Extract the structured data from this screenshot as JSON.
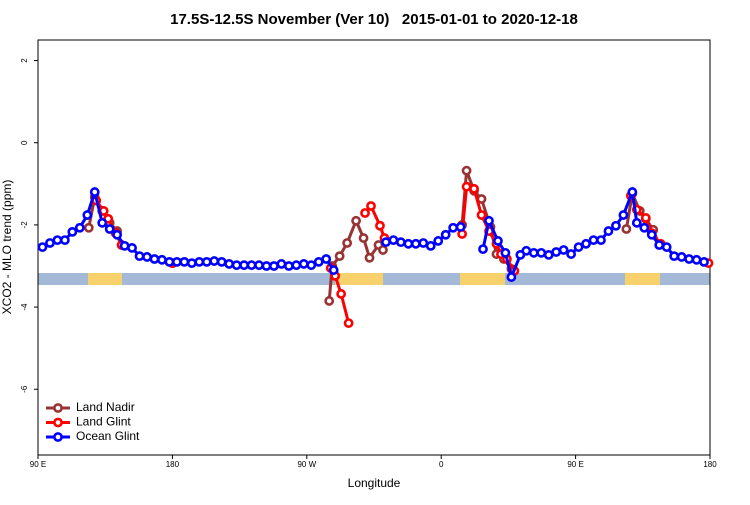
{
  "chart_data": {
    "type": "line",
    "title": "17.5S-12.5S November (Ver 10)   2015-01-01 to 2020-12-18",
    "x_label": "Longitude",
    "y_label": "XCO2 - MLO trend (ppm)",
    "xlim": [
      90,
      540
    ],
    "ylim": [
      -7.6,
      2.5
    ],
    "xticks": [
      {
        "value": 90,
        "label": "90 E"
      },
      180,
      {
        "value": 270,
        "label": "90 W"
      },
      {
        "value": 360,
        "label": "0"
      },
      {
        "value": 450,
        "label": "90 E"
      },
      {
        "value": 540,
        "label": "180"
      }
    ],
    "yticks": [
      2,
      0,
      -2,
      -4,
      -6
    ],
    "legend": "bottom-left",
    "series": [
      {
        "name": "Land Nadir",
        "color": "#993333",
        "x": [
          124,
          128,
          133,
          138,
          143,
          146,
          160,
          180,
          200,
          285,
          287,
          292,
          297,
          303,
          308,
          312,
          318,
          321,
          350,
          374,
          377,
          382,
          387,
          393,
          397,
          402,
          407,
          450,
          484,
          488,
          493,
          497,
          502,
          506
        ],
        "values": [
          -2.07,
          -1.32,
          -1.66,
          -1.95,
          -2.15,
          -2.49,
          null,
          -2.93,
          null,
          -3.85,
          -3.0,
          -2.76,
          -2.44,
          -1.9,
          -2.32,
          -2.8,
          -2.49,
          -2.61,
          null,
          -2.0,
          -0.68,
          -1.17,
          -1.37,
          -2.05,
          -2.71,
          -2.83,
          -3.07,
          null,
          -2.1,
          -1.24,
          -1.66,
          -1.85,
          -2.12,
          -2.49
        ]
      },
      {
        "name": "Land Glint",
        "color": "#ff0000",
        "x": [
          129,
          134,
          137,
          142,
          146,
          160,
          180,
          200,
          286,
          289,
          293,
          298,
          303,
          309,
          313,
          319,
          322,
          350,
          374,
          377,
          382,
          387,
          392,
          397,
          400,
          404,
          409,
          450,
          487,
          491,
          497,
          501,
          507,
          520,
          539
        ],
        "values": [
          -1.41,
          -1.66,
          -1.85,
          -2.2,
          -2.49,
          null,
          -2.93,
          null,
          -3.05,
          -3.24,
          -3.68,
          -4.39,
          null,
          -1.71,
          -1.54,
          -2.02,
          -2.32,
          null,
          -2.22,
          -1.07,
          -1.12,
          -1.76,
          -2.15,
          -2.46,
          -2.71,
          -2.83,
          -3.12,
          null,
          -1.29,
          -1.63,
          -1.83,
          -2.2,
          -2.46,
          null,
          -2.93
        ]
      },
      {
        "name": "Ocean Glint",
        "color": "#0000ff",
        "x": [
          93,
          98,
          103,
          108,
          113,
          118,
          123,
          128,
          133,
          138,
          143,
          148,
          153,
          158,
          163,
          168,
          173,
          178,
          183,
          188,
          193,
          198,
          203,
          208,
          213,
          218,
          223,
          228,
          233,
          238,
          243,
          248,
          253,
          258,
          263,
          268,
          273,
          278,
          283,
          288,
          305,
          323,
          328,
          333,
          338,
          343,
          348,
          353,
          358,
          363,
          368,
          373,
          380,
          388,
          392,
          398,
          403,
          407,
          413,
          417,
          422,
          427,
          432,
          437,
          442,
          447,
          452,
          457,
          462,
          467,
          472,
          477,
          482,
          488,
          491,
          496,
          501,
          506,
          511,
          516,
          521,
          526,
          531,
          536
        ],
        "values": [
          -2.54,
          -2.44,
          -2.37,
          -2.37,
          -2.17,
          -2.07,
          -1.76,
          -1.2,
          -1.95,
          -2.1,
          -2.24,
          -2.51,
          -2.56,
          -2.76,
          -2.78,
          -2.83,
          -2.85,
          -2.9,
          -2.9,
          -2.9,
          -2.93,
          -2.9,
          -2.9,
          -2.88,
          -2.9,
          -2.95,
          -2.98,
          -2.98,
          -2.98,
          -2.98,
          -3.0,
          -3.0,
          -2.95,
          -3.0,
          -2.98,
          -2.95,
          -2.98,
          -2.9,
          -2.83,
          -3.1,
          null,
          -2.42,
          -2.37,
          -2.42,
          -2.46,
          -2.46,
          -2.44,
          -2.51,
          -2.39,
          -2.24,
          -2.07,
          -2.05,
          null,
          -2.59,
          -1.9,
          -2.39,
          -2.68,
          -3.27,
          -2.73,
          -2.63,
          -2.68,
          -2.68,
          -2.73,
          -2.66,
          -2.61,
          -2.71,
          -2.54,
          -2.46,
          -2.37,
          -2.37,
          -2.15,
          -2.02,
          -1.76,
          -1.2,
          -1.95,
          -2.07,
          -2.24,
          -2.49,
          -2.54,
          -2.76,
          -2.78,
          -2.83,
          -2.85,
          -2.9
        ]
      }
    ]
  }
}
